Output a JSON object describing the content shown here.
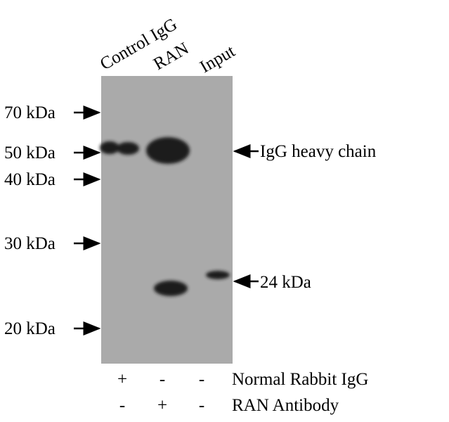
{
  "lanes": [
    "Control IgG",
    "RAN",
    "Input"
  ],
  "markers": [
    "70 kDa",
    "50 kDa",
    "40 kDa",
    "30 kDa",
    "20 kDa"
  ],
  "annotations": {
    "heavy_chain": "IgG heavy chain",
    "target": "24 kDa"
  },
  "conditions": [
    {
      "label": "Normal Rabbit IgG",
      "signs": [
        "+",
        "-",
        "-"
      ]
    },
    {
      "label": "RAN Antibody",
      "signs": [
        "-",
        "+",
        "-"
      ]
    }
  ],
  "colors": {
    "membrane": "#aaaaaa",
    "band": "#1a1a1a"
  }
}
